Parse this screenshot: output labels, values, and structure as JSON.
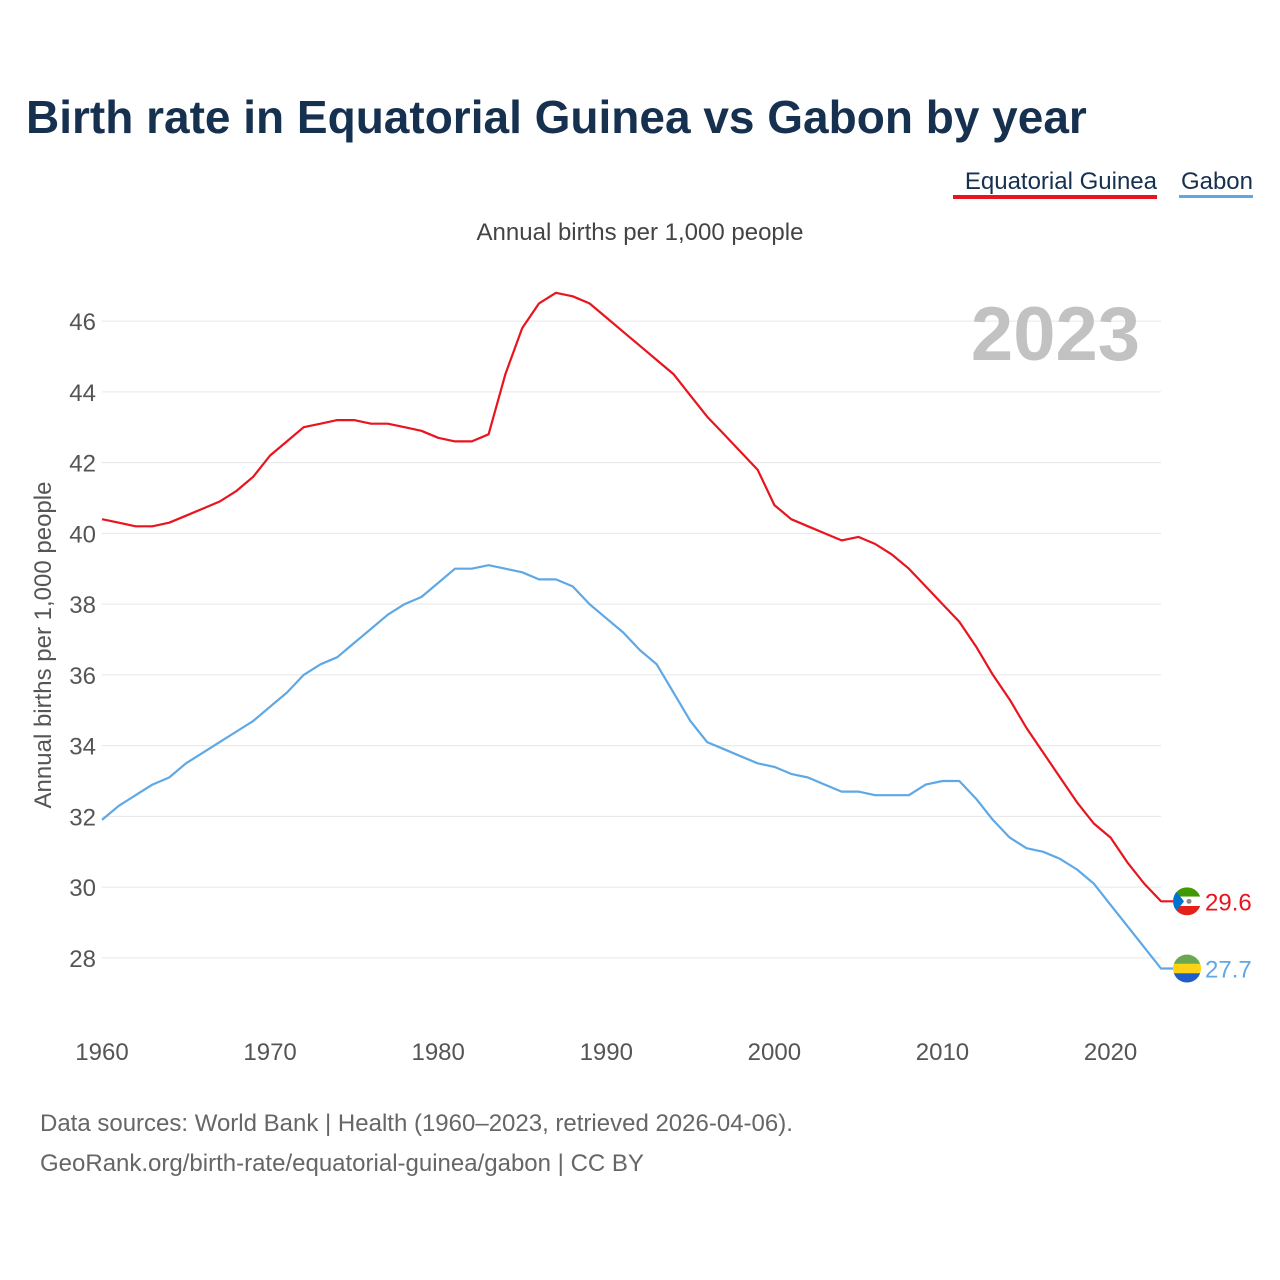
{
  "chart_data": {
    "type": "line",
    "title": "Birth rate in Equatorial Guinea vs Gabon by year",
    "subtitle": "Annual births per 1,000 people",
    "ylabel": "Annual births per 1,000 people",
    "xlabel": "",
    "year_label": "2023",
    "xlim": [
      1960,
      2023
    ],
    "ylim": [
      26.5,
      47.5
    ],
    "x_ticks": [
      1960,
      1970,
      1980,
      1990,
      2000,
      2010,
      2020
    ],
    "y_ticks": [
      28,
      30,
      32,
      34,
      36,
      38,
      40,
      42,
      44,
      46
    ],
    "grid": true,
    "legend_position": "top-right",
    "x": [
      1960,
      1961,
      1962,
      1963,
      1964,
      1965,
      1966,
      1967,
      1968,
      1969,
      1970,
      1971,
      1972,
      1973,
      1974,
      1975,
      1976,
      1977,
      1978,
      1979,
      1980,
      1981,
      1982,
      1983,
      1984,
      1985,
      1986,
      1987,
      1988,
      1989,
      1990,
      1991,
      1992,
      1993,
      1994,
      1995,
      1996,
      1997,
      1998,
      1999,
      2000,
      2001,
      2002,
      2003,
      2004,
      2005,
      2006,
      2007,
      2008,
      2009,
      2010,
      2011,
      2012,
      2013,
      2014,
      2015,
      2016,
      2017,
      2018,
      2019,
      2020,
      2021,
      2022,
      2023
    ],
    "series": [
      {
        "name": "Equatorial Guinea",
        "color": "#e8141e",
        "end_label": "29.6",
        "values": [
          40.4,
          40.3,
          40.2,
          40.2,
          40.3,
          40.5,
          40.7,
          40.9,
          41.2,
          41.6,
          42.2,
          42.6,
          43.0,
          43.1,
          43.2,
          43.2,
          43.1,
          43.1,
          43.0,
          42.9,
          42.7,
          42.6,
          42.6,
          42.8,
          44.5,
          45.8,
          46.5,
          46.8,
          46.7,
          46.5,
          46.1,
          45.7,
          45.3,
          44.9,
          44.5,
          43.9,
          43.3,
          42.8,
          42.3,
          41.8,
          40.8,
          40.4,
          40.2,
          40.0,
          39.8,
          39.9,
          39.7,
          39.4,
          39.0,
          38.5,
          38.0,
          37.5,
          36.8,
          36.0,
          35.3,
          34.5,
          33.8,
          33.1,
          32.4,
          31.8,
          31.4,
          30.7,
          30.1,
          29.6
        ]
      },
      {
        "name": "Gabon",
        "color": "#5ea8e6",
        "end_label": "27.7",
        "values": [
          31.9,
          32.3,
          32.6,
          32.9,
          33.1,
          33.5,
          33.8,
          34.1,
          34.4,
          34.7,
          35.1,
          35.5,
          36.0,
          36.3,
          36.5,
          36.9,
          37.3,
          37.7,
          38.0,
          38.2,
          38.6,
          39.0,
          39.0,
          39.1,
          39.0,
          38.9,
          38.7,
          38.7,
          38.5,
          38.0,
          37.6,
          37.2,
          36.7,
          36.3,
          35.5,
          34.7,
          34.1,
          33.9,
          33.7,
          33.5,
          33.4,
          33.2,
          33.1,
          32.9,
          32.7,
          32.7,
          32.6,
          32.6,
          32.6,
          32.9,
          33.0,
          33.0,
          32.5,
          31.9,
          31.4,
          31.1,
          31.0,
          30.8,
          30.5,
          30.1,
          29.5,
          28.9,
          28.3,
          27.7
        ]
      }
    ]
  },
  "footer": {
    "line1": "Data sources: World Bank | Health (1960–2023, retrieved 2026-04-06).",
    "line2": "GeoRank.org/birth-rate/equatorial-guinea/gabon | CC BY"
  }
}
